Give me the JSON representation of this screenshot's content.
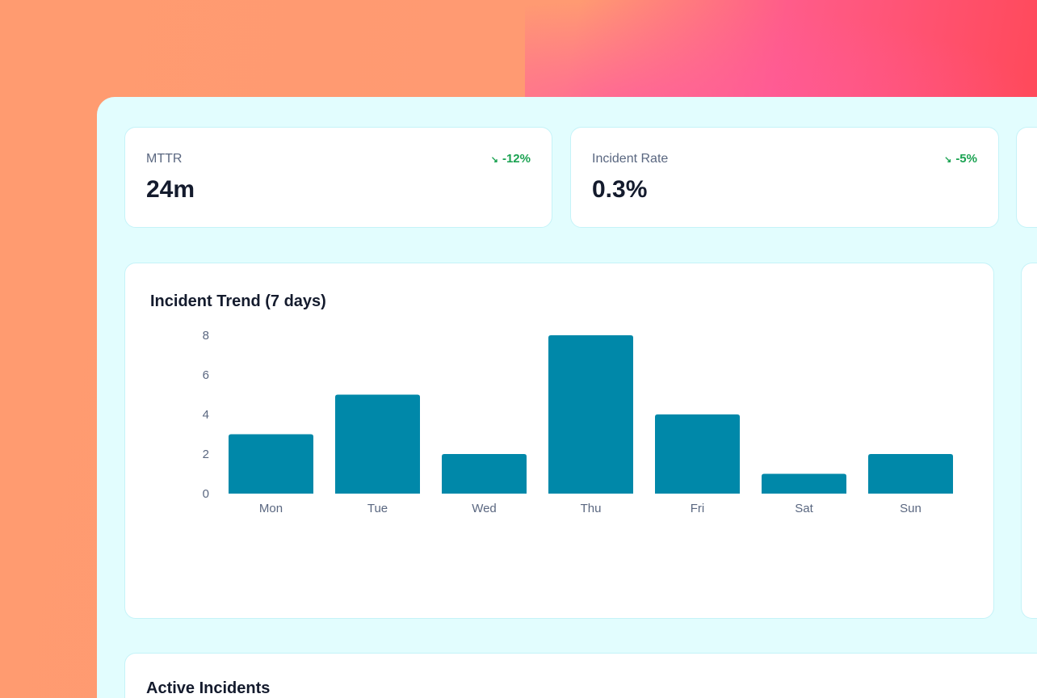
{
  "stats": [
    {
      "label": "MTTR",
      "value": "24m",
      "change": "-12%",
      "trend_icon": "trend-down-icon"
    },
    {
      "label": "Incident Rate",
      "value": "0.3%",
      "change": "-5%",
      "trend_icon": "trend-down-icon"
    }
  ],
  "colors": {
    "bar": "#0088a9",
    "positive": "#1aa251",
    "panel": "#e2fdfe"
  },
  "chart": {
    "title": "Incident Trend (7 days)"
  },
  "chart_data": {
    "type": "bar",
    "title": "Incident Trend (7 days)",
    "categories": [
      "Mon",
      "Tue",
      "Wed",
      "Thu",
      "Fri",
      "Sat",
      "Sun"
    ],
    "values": [
      3,
      5,
      2,
      8,
      4,
      1,
      2
    ],
    "yticks": [
      0,
      2,
      4,
      6,
      8
    ],
    "ylim": [
      0,
      8
    ],
    "grid": false
  },
  "incidents": {
    "title": "Active Incidents"
  }
}
